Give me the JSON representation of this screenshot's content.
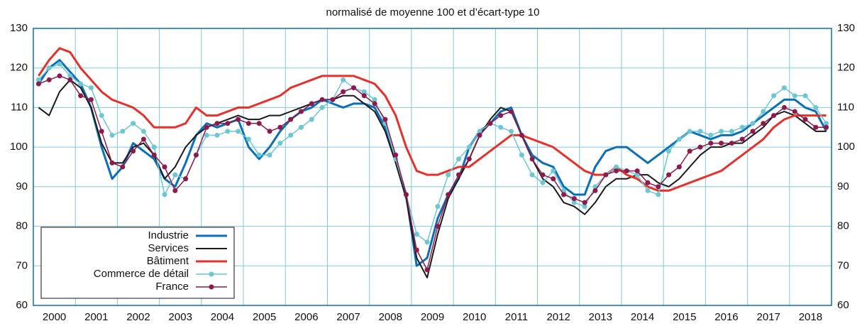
{
  "chart_data": {
    "type": "line",
    "title": "normalisé de moyenne 100 et d’écart-type 10",
    "categories": [
      "2000",
      "2001",
      "2002",
      "2003",
      "2004",
      "2005",
      "2006",
      "2007",
      "2008",
      "2009",
      "2010",
      "2011",
      "2012",
      "2013",
      "2014",
      "2015",
      "2016",
      "2017",
      "2018"
    ],
    "ylim": [
      60,
      130
    ],
    "yticks": [
      60,
      70,
      80,
      90,
      100,
      110,
      120,
      130
    ],
    "grid": true,
    "legend": "lower left",
    "series": [
      {
        "name": "Industrie",
        "color": "#0a6fb8",
        "width": 3,
        "marker": false,
        "values": [
          [
            116,
            120,
            122,
            119
          ],
          [
            116,
            110,
            100,
            92
          ],
          [
            95,
            101,
            99,
            97
          ],
          [
            92,
            90,
            96,
            103
          ],
          [
            106,
            105,
            106,
            107
          ],
          [
            100,
            97,
            100,
            104
          ],
          [
            107,
            109,
            110,
            112
          ],
          [
            111,
            110,
            111,
            111
          ],
          [
            110,
            105,
            97,
            88
          ],
          [
            70,
            72,
            82,
            88
          ],
          [
            92,
            100,
            104,
            106
          ],
          [
            109,
            110,
            103,
            98
          ],
          [
            96,
            95,
            90,
            88
          ],
          [
            88,
            95,
            99,
            100
          ],
          [
            100,
            98,
            96,
            98
          ],
          [
            100,
            102,
            104,
            103
          ],
          [
            102,
            103,
            103,
            104
          ],
          [
            106,
            108,
            110,
            112
          ],
          [
            112,
            110,
            109,
            104
          ]
        ]
      },
      {
        "name": "Services",
        "color": "#1a1a1a",
        "width": 2,
        "marker": false,
        "values": [
          [
            110,
            108,
            114,
            117
          ],
          [
            115,
            110,
            101,
            96
          ],
          [
            96,
            100,
            101,
            98
          ],
          [
            92,
            95,
            100,
            103
          ],
          [
            105,
            106,
            107,
            108
          ],
          [
            107,
            107,
            108,
            108
          ],
          [
            109,
            110,
            111,
            112
          ],
          [
            112,
            113,
            113,
            111
          ],
          [
            109,
            104,
            96,
            87
          ],
          [
            72,
            67,
            78,
            87
          ],
          [
            92,
            97,
            103,
            107
          ],
          [
            110,
            109,
            103,
            97
          ],
          [
            92,
            90,
            86,
            85
          ],
          [
            83,
            86,
            90,
            92
          ],
          [
            92,
            93,
            93,
            91
          ],
          [
            90,
            92,
            95,
            98
          ],
          [
            100,
            100,
            101,
            101
          ],
          [
            103,
            105,
            108,
            109
          ],
          [
            108,
            106,
            104,
            104
          ]
        ]
      },
      {
        "name": "Bâtiment",
        "color": "#e8302a",
        "width": 3,
        "marker": false,
        "values": [
          [
            118,
            122,
            125,
            124
          ],
          [
            120,
            117,
            114,
            112
          ],
          [
            111,
            110,
            108,
            105
          ],
          [
            105,
            105,
            106,
            110
          ],
          [
            108,
            108,
            109,
            110
          ],
          [
            110,
            111,
            112,
            113
          ],
          [
            115,
            116,
            117,
            118
          ],
          [
            118,
            118,
            118,
            117
          ],
          [
            116,
            113,
            108,
            100
          ],
          [
            94,
            93,
            93,
            94
          ],
          [
            95,
            95,
            97,
            99
          ],
          [
            101,
            103,
            103,
            102
          ],
          [
            101,
            100,
            98,
            96
          ],
          [
            94,
            93,
            93,
            95
          ],
          [
            93,
            92,
            90,
            89
          ],
          [
            89,
            90,
            91,
            92
          ],
          [
            93,
            94,
            96,
            98
          ],
          [
            100,
            102,
            105,
            107
          ],
          [
            108,
            108,
            108,
            108
          ]
        ]
      },
      {
        "name": "Commerce de détail",
        "color": "#6cc7d3",
        "width": 1.5,
        "marker": true,
        "values": [
          [
            117,
            120,
            121,
            118
          ],
          [
            116,
            115,
            108,
            103
          ],
          [
            104,
            106,
            104,
            100
          ],
          [
            88,
            93,
            92,
            98
          ],
          [
            103,
            103,
            104,
            104
          ],
          [
            102,
            98,
            98,
            101
          ],
          [
            103,
            105,
            107,
            110
          ],
          [
            112,
            117,
            115,
            114
          ],
          [
            112,
            106,
            97,
            88
          ],
          [
            78,
            76,
            85,
            93
          ],
          [
            97,
            100,
            104,
            106
          ],
          [
            105,
            104,
            98,
            93
          ],
          [
            91,
            94,
            89,
            86
          ],
          [
            85,
            90,
            93,
            95
          ],
          [
            94,
            93,
            89,
            88
          ],
          [
            99,
            102,
            104,
            104
          ],
          [
            103,
            104,
            104,
            105
          ],
          [
            106,
            109,
            113,
            115
          ],
          [
            113,
            113,
            110,
            106
          ]
        ]
      },
      {
        "name": "France",
        "color": "#8e1a4d",
        "width": 1.5,
        "marker": true,
        "values": [
          [
            116,
            117,
            118,
            117
          ],
          [
            113,
            112,
            104,
            96
          ],
          [
            95,
            99,
            102,
            98
          ],
          [
            95,
            89,
            92,
            98
          ],
          [
            105,
            106,
            106,
            107
          ],
          [
            106,
            106,
            104,
            105
          ],
          [
            107,
            109,
            111,
            112
          ],
          [
            112,
            114,
            115,
            113
          ],
          [
            111,
            107,
            98,
            88
          ],
          [
            74,
            69,
            80,
            88
          ],
          [
            93,
            97,
            103,
            106
          ],
          [
            108,
            109,
            103,
            97
          ],
          [
            93,
            92,
            88,
            87
          ],
          [
            86,
            89,
            93,
            94
          ],
          [
            94,
            94,
            91,
            90
          ],
          [
            93,
            95,
            99,
            100
          ],
          [
            101,
            101,
            101,
            102
          ],
          [
            104,
            106,
            108,
            110
          ],
          [
            109,
            107,
            105,
            105
          ]
        ]
      }
    ]
  }
}
